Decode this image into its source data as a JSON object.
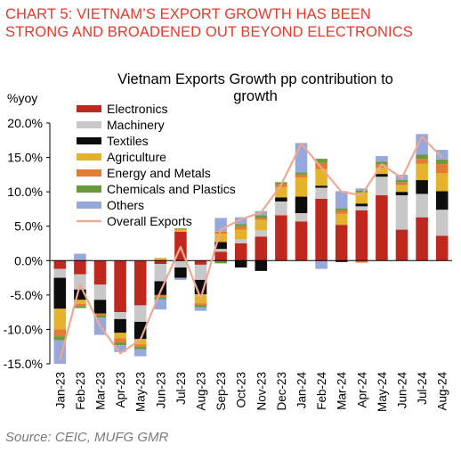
{
  "heading": {
    "line1": "CHART 5: VIETNAM’S EXPORT GROWTH HAS BEEN",
    "line2": "STRONG AND BROADENED OUT BEYOND ELECTRONICS"
  },
  "source": "Source: CEIC, MUFG GMR",
  "chart_data": {
    "type": "bar",
    "stacked": true,
    "title": "Vietnam Exports Growth pp contribution to growth",
    "title_lines": [
      "Vietnam Exports Growth pp contribution to",
      "growth"
    ],
    "ylabel": "%yoy",
    "xlabel": "",
    "ylim": [
      -15,
      20
    ],
    "yticks": [
      "20.0%",
      "15.0%",
      "10.0%",
      "5.0%",
      "0.0%",
      "-5.0%",
      "-10.0%",
      "-15.0%"
    ],
    "grid": false,
    "legend_position": "top-left",
    "categories": [
      "Jan-23",
      "Feb-23",
      "Mar-23",
      "Apr-23",
      "May-23",
      "Jun-23",
      "Jul-23",
      "Aug-23",
      "Sep-23",
      "Oct-23",
      "Nov-23",
      "Dec-23",
      "Jan-24",
      "Feb-24",
      "Mar-24",
      "Apr-24",
      "May-24",
      "Jun-24",
      "Jul-24",
      "Aug-24"
    ],
    "series": [
      {
        "name": "Electronics",
        "color": "#c0281e",
        "values": [
          -1.2,
          -2.0,
          -3.5,
          -7.5,
          -6.5,
          -0.5,
          4.2,
          -0.6,
          1.3,
          2.5,
          3.5,
          6.6,
          5.7,
          9.0,
          5.2,
          7.3,
          9.5,
          4.5,
          6.3,
          3.6
        ]
      },
      {
        "name": "Machinery",
        "color": "#c8c8c8",
        "values": [
          -1.3,
          -2.2,
          -2.2,
          -1.0,
          -2.4,
          -2.5,
          -1.0,
          -2.2,
          0.4,
          0.6,
          0.9,
          2.0,
          1.2,
          1.6,
          0.0,
          0.6,
          2.7,
          5.0,
          3.4,
          3.8
        ]
      },
      {
        "name": "Textiles",
        "color": "#0d0d0d",
        "values": [
          -4.5,
          -1.5,
          -2.0,
          -2.0,
          -2.5,
          -2.0,
          -1.5,
          -2.1,
          1.0,
          -1.0,
          -1.5,
          0.6,
          2.4,
          0.3,
          -0.2,
          0.4,
          0.4,
          0.5,
          2.0,
          2.7
        ]
      },
      {
        "name": "Agriculture",
        "color": "#e5b32b",
        "values": [
          -3.0,
          -0.6,
          0.0,
          -0.8,
          -0.8,
          0.4,
          0.3,
          -1.3,
          1.2,
          1.4,
          1.5,
          1.5,
          2.8,
          2.4,
          1.6,
          1.6,
          0.9,
          1.0,
          2.4,
          2.6
        ]
      },
      {
        "name": "Energy and Metals",
        "color": "#e37b32",
        "values": [
          -1.0,
          -0.3,
          -0.3,
          -0.6,
          -0.3,
          -0.3,
          0.1,
          -0.3,
          0.3,
          0.5,
          0.3,
          0.4,
          0.4,
          0.9,
          0.5,
          -0.3,
          0.5,
          0.4,
          0.7,
          1.3
        ]
      },
      {
        "name": "Chemicals and Plastics",
        "color": "#6b9a3b",
        "values": [
          -0.6,
          -0.3,
          -0.3,
          -0.4,
          -0.4,
          -0.3,
          0.1,
          -0.3,
          -0.4,
          0.3,
          0.4,
          0.3,
          0.3,
          0.6,
          0.3,
          0.3,
          0.4,
          0.3,
          0.6,
          0.7
        ]
      },
      {
        "name": "Others",
        "color": "#97a9dc",
        "values": [
          -3.4,
          1.0,
          -2.5,
          -1.0,
          -1.0,
          -1.5,
          -0.3,
          -0.5,
          2.0,
          1.0,
          0.6,
          0.0,
          4.3,
          -1.2,
          2.5,
          0.3,
          0.8,
          0.8,
          3.0,
          1.4
        ]
      },
      {
        "name": "Overall Exports",
        "color": "#f0a890",
        "kind": "line",
        "values": [
          -14.5,
          -3.5,
          -9.5,
          -13.5,
          -11.5,
          -4.5,
          2.0,
          -5.5,
          4.5,
          6.0,
          7.0,
          11.0,
          17.0,
          13.5,
          10.0,
          9.5,
          14.0,
          12.0,
          18.0,
          15.0
        ]
      }
    ]
  }
}
